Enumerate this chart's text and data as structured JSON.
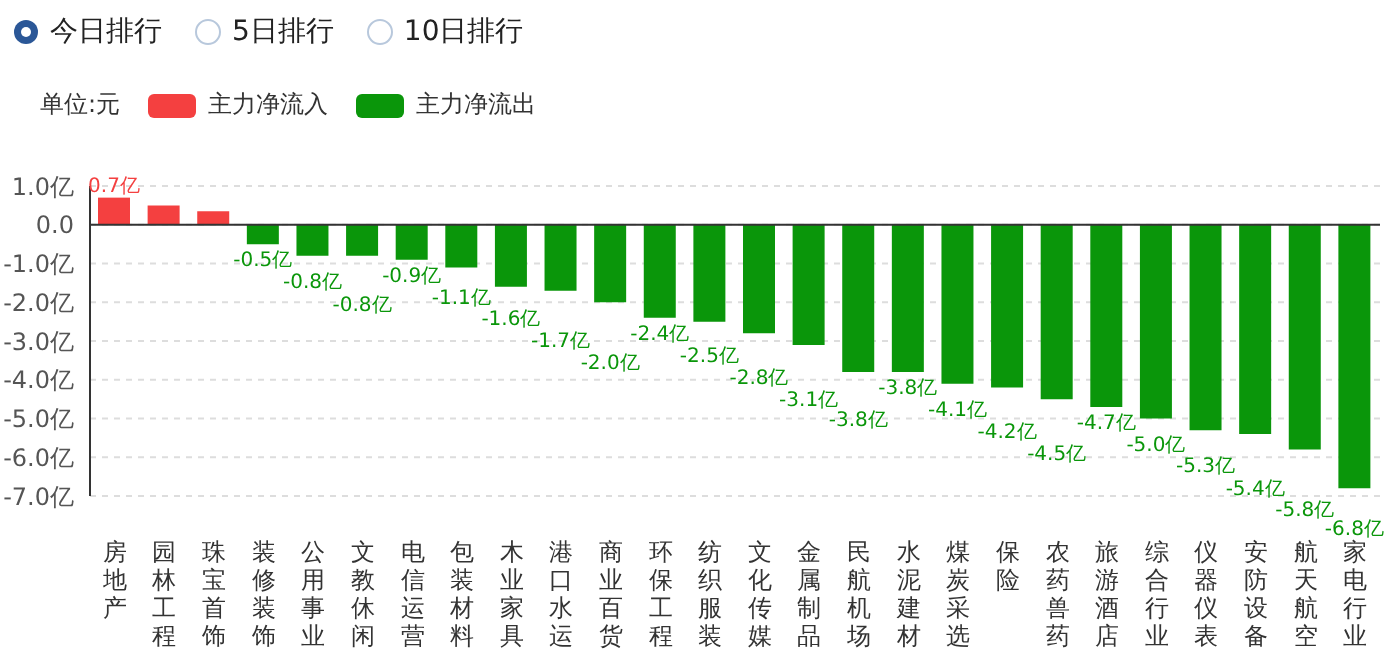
{
  "chart_data": {
    "type": "bar",
    "legend_title": "单位:元",
    "legend": "top left",
    "grid": "y",
    "line_style": "dashed",
    "annotations": [
      "今日排行",
      "5日排行",
      "10日排行"
    ],
    "categories": [
      "房地产",
      "园林工程",
      "珠宝首饰",
      "装修装饰",
      "公用事业",
      "文教休闲",
      "电信运营",
      "包装材料",
      "木业家具",
      "港口水运",
      "商业百货",
      "环保工程",
      "纺织服装",
      "文化传媒",
      "金属制品",
      "民航机场",
      "水泥建材",
      "煤炭采选",
      "保险",
      "农药兽药",
      "旅游酒店",
      "综合行业",
      "仪器仪表",
      "安防设备",
      "航天航空",
      "家电行业"
    ],
    "ylim": [
      -7,
      1
    ],
    "yticks": [
      {
        "value": 1,
        "label": "1.0亿"
      },
      {
        "value": 0,
        "label": "0.0"
      },
      {
        "value": -1,
        "label": "-1.0亿"
      },
      {
        "value": -2,
        "label": "-2.0亿"
      },
      {
        "value": -3,
        "label": "-3.0亿"
      },
      {
        "value": -4,
        "label": "-4.0亿"
      },
      {
        "value": -5,
        "label": "-5.0亿"
      },
      {
        "value": -6,
        "label": "-6.0亿"
      },
      {
        "value": -7,
        "label": "-7.0亿"
      }
    ],
    "series": [
      {
        "name": "主力净流入",
        "color": "#f44040",
        "values": [
          0.7,
          0.5,
          0.35,
          null,
          null,
          null,
          null,
          null,
          null,
          null,
          null,
          null,
          null,
          null,
          null,
          null,
          null,
          null,
          null,
          null,
          null,
          null,
          null,
          null,
          null,
          null
        ],
        "value_labels": [
          "0.7亿",
          null,
          null,
          null,
          null,
          null,
          null,
          null,
          null,
          null,
          null,
          null,
          null,
          null,
          null,
          null,
          null,
          null,
          null,
          null,
          null,
          null,
          null,
          null,
          null,
          null
        ]
      },
      {
        "name": "主力净流出",
        "color": "#0a960a",
        "values": [
          null,
          null,
          null,
          -0.5,
          -0.8,
          -0.8,
          -0.9,
          -1.1,
          -1.6,
          -1.7,
          -2.0,
          -2.4,
          -2.5,
          -2.8,
          -3.1,
          -3.8,
          -3.8,
          -4.1,
          -4.2,
          -4.5,
          -4.7,
          -5.0,
          -5.3,
          -5.4,
          -5.8,
          -6.8
        ],
        "value_labels": [
          null,
          null,
          null,
          "-0.5亿",
          "-0.8亿",
          "-0.8亿",
          "-0.9亿",
          "-1.1亿",
          "-1.6亿",
          "-1.7亿",
          "-2.0亿",
          "-2.4亿",
          "-2.5亿",
          "-2.8亿",
          "-3.1亿",
          "-3.8亿",
          "-3.8亿",
          "-4.1亿",
          "-4.2亿",
          "-4.5亿",
          "-4.7亿",
          "-5.0亿",
          "-5.3亿",
          "-5.4亿",
          "-5.8亿",
          "-6.8亿"
        ]
      }
    ]
  }
}
